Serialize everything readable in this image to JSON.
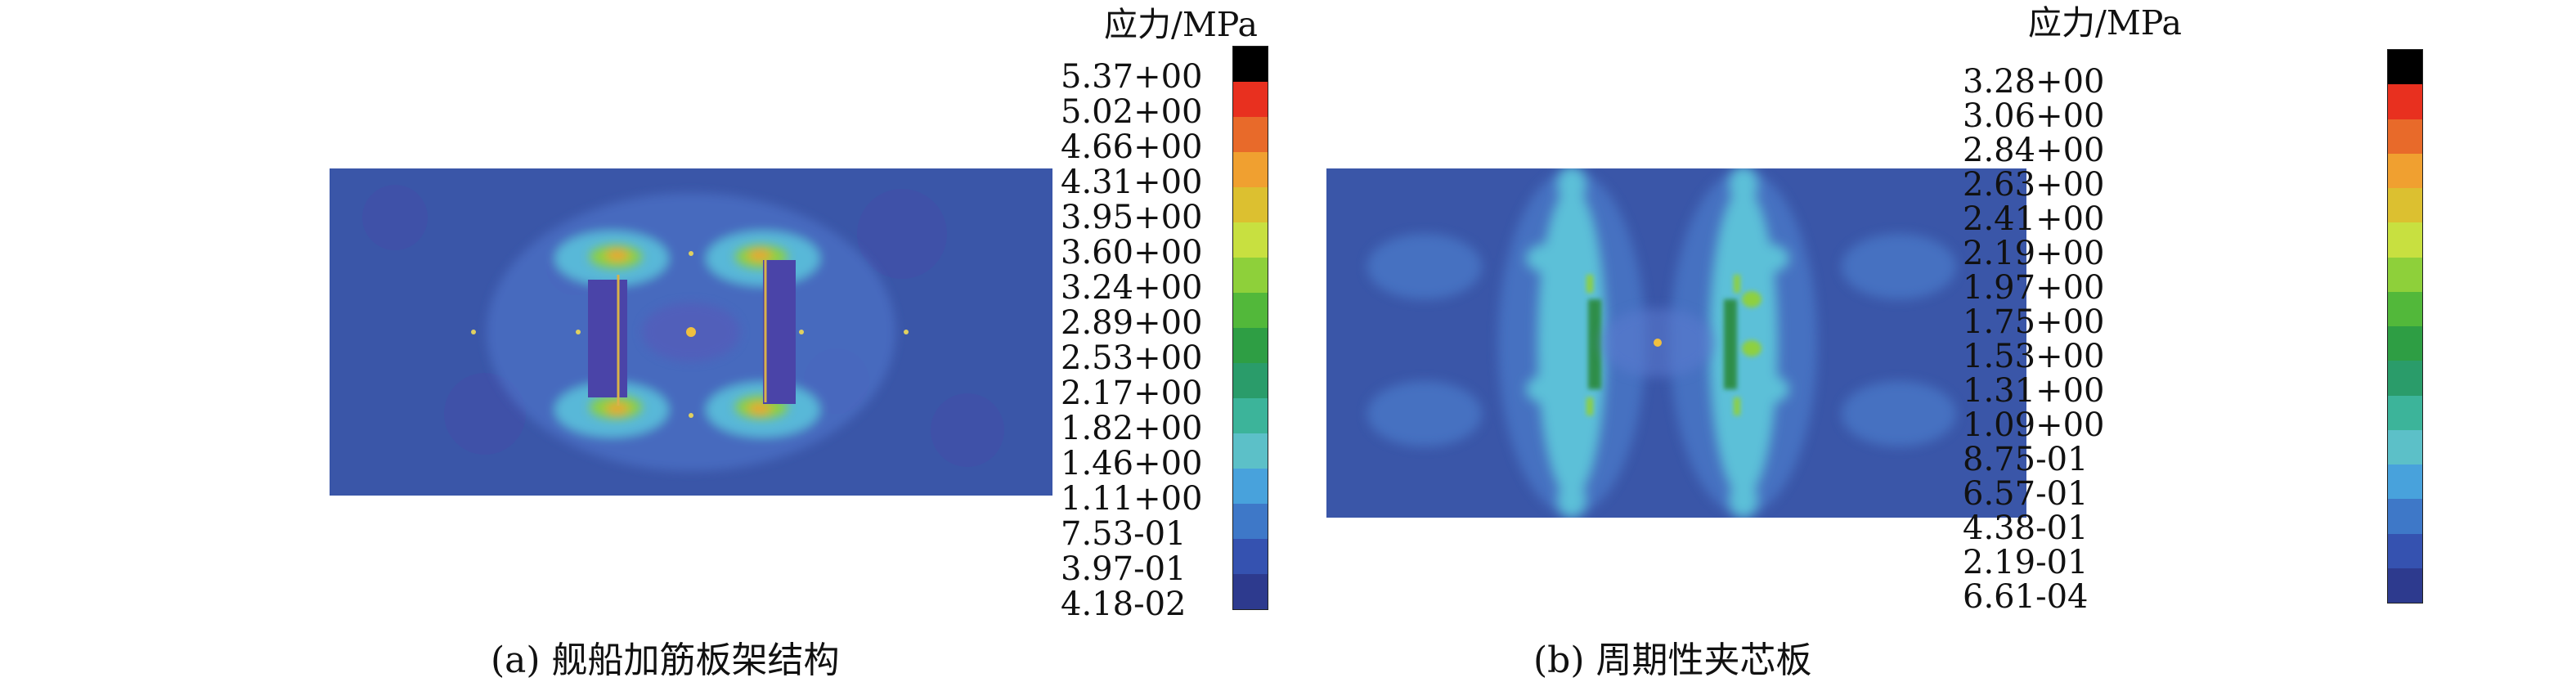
{
  "panel_a": {
    "caption": "(a) 舰船加筋板架结构",
    "legend": {
      "unit": "应力/MPa",
      "labels": [
        "5.37+00",
        "5.02+00",
        "4.66+00",
        "4.31+00",
        "3.95+00",
        "3.60+00",
        "3.24+00",
        "2.89+00",
        "2.53+00",
        "2.17+00",
        "1.82+00",
        "1.46+00",
        "1.11+00",
        "7.53-01",
        "3.97-01",
        "4.18-02"
      ],
      "colors": [
        "#000000",
        "#e8301f",
        "#e86a2a",
        "#f0a030",
        "#dcc030",
        "#c8e040",
        "#8ed03a",
        "#52b83a",
        "#2e9e44",
        "#2a9c6a",
        "#3cb49a",
        "#5cc0c8",
        "#48a2dc",
        "#3e78c8",
        "#3552b0",
        "#2d3a8e"
      ]
    }
  },
  "panel_b": {
    "caption": "(b) 周期性夹芯板",
    "legend": {
      "unit": "应力/MPa",
      "labels": [
        "3.28+00",
        "3.06+00",
        "2.84+00",
        "2.63+00",
        "2.41+00",
        "2.19+00",
        "1.97+00",
        "1.75+00",
        "1.53+00",
        "1.31+00",
        "1.09+00",
        "8.75-01",
        "6.57-01",
        "4.38-01",
        "2.19-01",
        "6.61-04"
      ],
      "colors": [
        "#000000",
        "#e8301f",
        "#e86a2a",
        "#f0a030",
        "#dcc030",
        "#c8e040",
        "#8ed03a",
        "#52b83a",
        "#2e9e44",
        "#2a9c6a",
        "#3cb49a",
        "#5cc0c8",
        "#48a2dc",
        "#3e78c8",
        "#3552b0",
        "#2d3a8e"
      ]
    }
  }
}
